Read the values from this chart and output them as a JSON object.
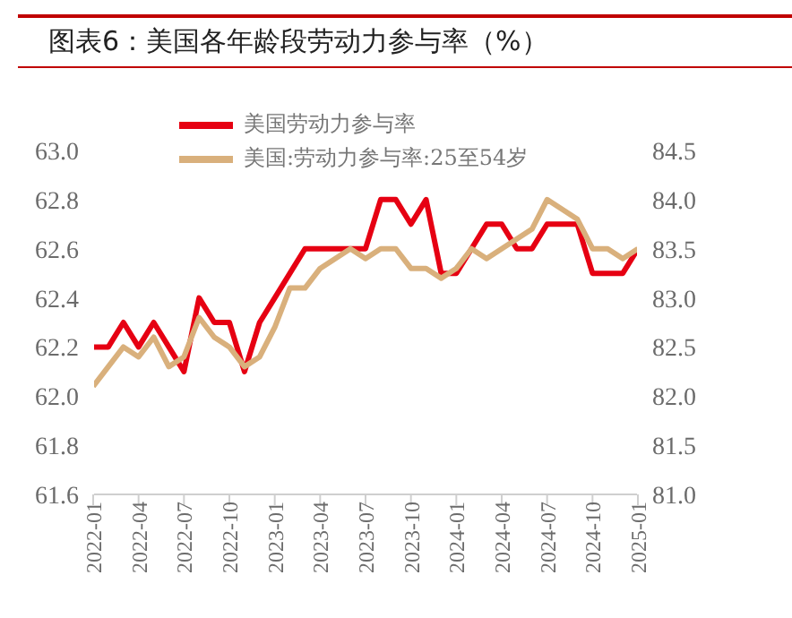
{
  "chart_data": {
    "type": "line",
    "title": "图表6：美国各年龄段劳动力参与率（%）",
    "x": [
      "2022-01",
      "2022-02",
      "2022-03",
      "2022-04",
      "2022-05",
      "2022-06",
      "2022-07",
      "2022-08",
      "2022-09",
      "2022-10",
      "2022-11",
      "2022-12",
      "2023-01",
      "2023-02",
      "2023-03",
      "2023-04",
      "2023-05",
      "2023-06",
      "2023-07",
      "2023-08",
      "2023-09",
      "2023-10",
      "2023-11",
      "2023-12",
      "2024-01",
      "2024-02",
      "2024-03",
      "2024-04",
      "2024-05",
      "2024-06",
      "2024-07",
      "2024-08",
      "2024-09",
      "2024-10",
      "2024-11",
      "2024-12",
      "2025-01"
    ],
    "series": [
      {
        "name": "美国劳动力参与率",
        "color": "#e60012",
        "values": [
          62.2,
          62.2,
          62.3,
          62.2,
          62.3,
          62.2,
          62.1,
          62.4,
          62.3,
          62.3,
          62.1,
          62.3,
          62.4,
          62.5,
          62.6,
          62.6,
          62.6,
          62.6,
          62.6,
          62.8,
          62.8,
          62.7,
          62.8,
          62.5,
          62.5,
          62.6,
          62.7,
          62.7,
          62.6,
          62.6,
          62.7,
          62.7,
          62.7,
          62.5,
          62.5,
          62.5,
          62.6
        ]
      },
      {
        "name": "美国:劳动力参与率:25至54岁",
        "color": "#d9b07c",
        "axis": "y2",
        "values": [
          82.1,
          82.3,
          82.5,
          82.4,
          82.6,
          82.3,
          82.4,
          82.8,
          82.6,
          82.5,
          82.3,
          82.4,
          82.7,
          83.1,
          83.1,
          83.3,
          83.4,
          83.5,
          83.4,
          83.5,
          83.5,
          83.3,
          83.3,
          83.2,
          83.3,
          83.5,
          83.4,
          83.5,
          83.6,
          83.7,
          84.0,
          83.9,
          83.8,
          83.5,
          83.5,
          83.4,
          83.5
        ]
      }
    ],
    "xlim": [
      "2022-01",
      "2025-01"
    ],
    "xticks": [
      "2022-01",
      "2022-04",
      "2022-07",
      "2022-10",
      "2023-01",
      "2023-04",
      "2023-07",
      "2023-10",
      "2024-01",
      "2024-04",
      "2024-07",
      "2024-10",
      "2025-01"
    ],
    "ylim": [
      61.6,
      63.0
    ],
    "yticks": [
      {
        "value": 61.6,
        "label": "61.6"
      },
      {
        "value": 61.8,
        "label": "61.8"
      },
      {
        "value": 62.0,
        "label": "62.0"
      },
      {
        "value": 62.2,
        "label": "62.2"
      },
      {
        "value": 62.4,
        "label": "62.4"
      },
      {
        "value": 62.6,
        "label": "62.6"
      },
      {
        "value": 62.8,
        "label": "62.8"
      },
      {
        "value": 63.0,
        "label": "63.0"
      }
    ],
    "y2lim": [
      81.0,
      84.5
    ],
    "y2ticks": [
      {
        "value": 81.0,
        "label": "81.0"
      },
      {
        "value": 81.5,
        "label": "81.5"
      },
      {
        "value": 82.0,
        "label": "82.0"
      },
      {
        "value": 82.5,
        "label": "82.5"
      },
      {
        "value": 83.0,
        "label": "83.0"
      },
      {
        "value": 83.5,
        "label": "83.5"
      },
      {
        "value": 84.0,
        "label": "84.0"
      },
      {
        "value": 84.5,
        "label": "84.5"
      }
    ],
    "grid": false,
    "legend": "top",
    "marker": "none",
    "line_style": "solid"
  }
}
